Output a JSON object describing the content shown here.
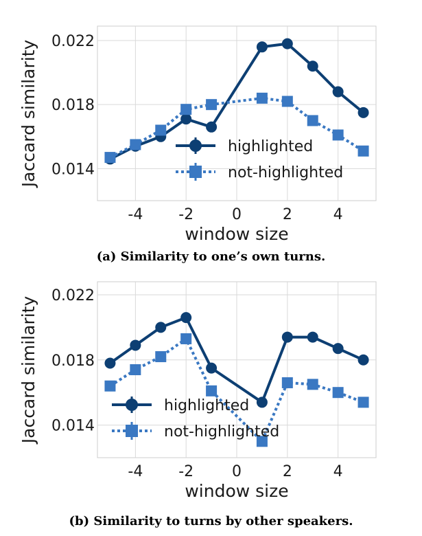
{
  "chart_data": [
    {
      "type": "line",
      "caption": "(a) Similarity to one’s own turns.",
      "xlabel": "window size",
      "ylabel": "Jaccard similarity",
      "xlim": [
        -5.5,
        5.5
      ],
      "ylim": [
        0.012,
        0.0229
      ],
      "xticks": [
        -4,
        -2,
        0,
        2,
        4
      ],
      "xtick_labels": [
        "-4",
        "-2",
        "0",
        "2",
        "4"
      ],
      "yticks": [
        0.014,
        0.018,
        0.022
      ],
      "ytick_labels": [
        "0.014",
        "0.018",
        "0.022"
      ],
      "grid": true,
      "legend_position": "lower-right",
      "series": [
        {
          "name": "highlighted",
          "style": "solid",
          "marker": "circle",
          "color": "#0d3f73",
          "x": [
            -5,
            -4,
            -3,
            -2,
            -1,
            1,
            2,
            3,
            4,
            5
          ],
          "values": [
            0.0146,
            0.0154,
            0.016,
            0.0171,
            0.0166,
            0.0216,
            0.0218,
            0.0204,
            0.0188,
            0.0175
          ]
        },
        {
          "name": "not-highlighted",
          "style": "dotted",
          "marker": "square",
          "color": "#3a78c2",
          "x": [
            -5,
            -4,
            -3,
            -2,
            -1,
            1,
            2,
            3,
            4,
            5
          ],
          "values": [
            0.0147,
            0.0155,
            0.0164,
            0.0177,
            0.018,
            0.0184,
            0.0182,
            0.017,
            0.0161,
            0.0151
          ]
        }
      ]
    },
    {
      "type": "line",
      "caption": "(b) Similarity to turns by other speakers.",
      "xlabel": "window size",
      "ylabel": "Jaccard similarity",
      "xlim": [
        -5.5,
        5.5
      ],
      "ylim": [
        0.012,
        0.0228
      ],
      "xticks": [
        -4,
        -2,
        0,
        2,
        4
      ],
      "xtick_labels": [
        "-4",
        "-2",
        "0",
        "2",
        "4"
      ],
      "yticks": [
        0.014,
        0.018,
        0.022
      ],
      "ytick_labels": [
        "0.014",
        "0.018",
        "0.022"
      ],
      "grid": true,
      "legend_position": "lower-left",
      "series": [
        {
          "name": "highlighted",
          "style": "solid",
          "marker": "circle",
          "color": "#0d3f73",
          "x": [
            -5,
            -4,
            -3,
            -2,
            -1,
            1,
            2,
            3,
            4,
            5
          ],
          "values": [
            0.0178,
            0.0189,
            0.02,
            0.0206,
            0.0175,
            0.0154,
            0.0194,
            0.0194,
            0.0187,
            0.018
          ]
        },
        {
          "name": "not-highlighted",
          "style": "dotted",
          "marker": "square",
          "color": "#3a78c2",
          "x": [
            -5,
            -4,
            -3,
            -2,
            -1,
            1,
            2,
            3,
            4,
            5
          ],
          "values": [
            0.0164,
            0.0174,
            0.0182,
            0.0193,
            0.0161,
            0.013,
            0.0166,
            0.0165,
            0.016,
            0.0154
          ]
        }
      ]
    }
  ]
}
